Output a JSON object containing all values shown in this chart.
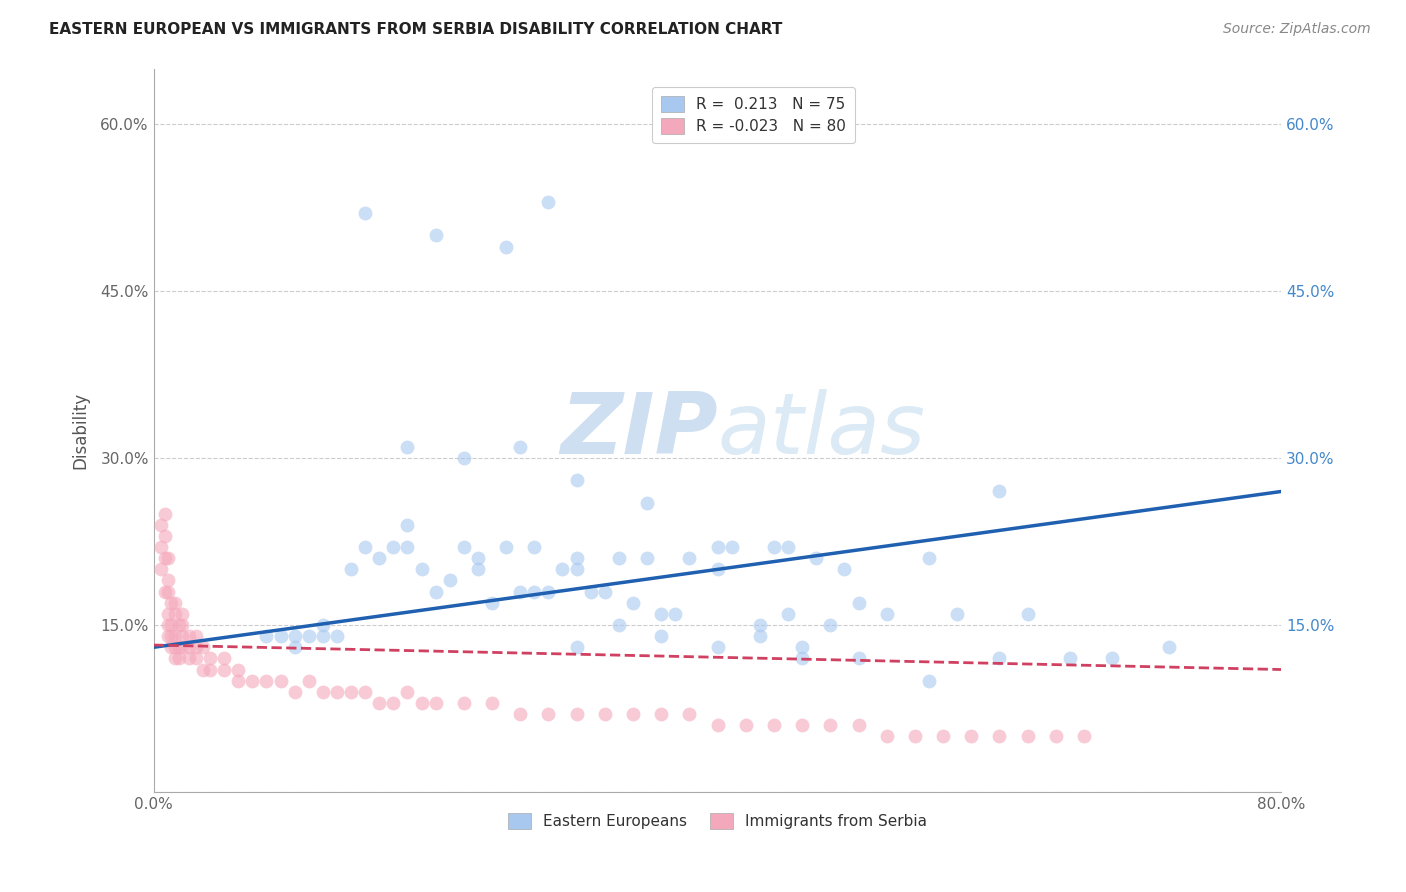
{
  "title": "EASTERN EUROPEAN VS IMMIGRANTS FROM SERBIA DISABILITY CORRELATION CHART",
  "source": "Source: ZipAtlas.com",
  "ylabel": "Disability",
  "watermark_zip": "ZIP",
  "watermark_atlas": "atlas",
  "xmin": 0.0,
  "xmax": 0.8,
  "ymin": 0.0,
  "ymax": 0.65,
  "yticks": [
    0.0,
    0.15,
    0.3,
    0.45,
    0.6
  ],
  "ytick_labels_left": [
    "",
    "15.0%",
    "30.0%",
    "45.0%",
    "60.0%"
  ],
  "ytick_labels_right": [
    "",
    "15.0%",
    "30.0%",
    "45.0%",
    "60.0%"
  ],
  "xtick_labels": [
    "0.0%",
    "",
    "",
    "",
    "80.0%"
  ],
  "legend_r1": "R =  0.213",
  "legend_n1": "N = 75",
  "legend_r2": "R = -0.023",
  "legend_n2": "N = 80",
  "color_blue": "#A8C8F0",
  "color_pink": "#F4A8BB",
  "line_blue": "#2060B0",
  "line_pink": "#D04060",
  "blue_scatter_x": [
    0.1,
    0.12,
    0.14,
    0.15,
    0.16,
    0.17,
    0.18,
    0.18,
    0.19,
    0.2,
    0.21,
    0.22,
    0.23,
    0.23,
    0.24,
    0.25,
    0.26,
    0.27,
    0.27,
    0.28,
    0.29,
    0.3,
    0.3,
    0.31,
    0.32,
    0.33,
    0.34,
    0.35,
    0.36,
    0.37,
    0.38,
    0.4,
    0.41,
    0.43,
    0.44,
    0.45,
    0.46,
    0.47,
    0.48,
    0.49,
    0.5,
    0.52,
    0.55,
    0.57,
    0.6,
    0.62,
    0.65,
    0.68,
    0.72,
    0.15,
    0.2,
    0.25,
    0.28,
    0.3,
    0.33,
    0.36,
    0.4,
    0.43,
    0.46,
    0.5,
    0.55,
    0.6,
    0.18,
    0.22,
    0.26,
    0.3,
    0.35,
    0.4,
    0.45,
    0.08,
    0.09,
    0.1,
    0.11,
    0.12,
    0.13
  ],
  "blue_scatter_y": [
    0.14,
    0.14,
    0.2,
    0.22,
    0.21,
    0.22,
    0.24,
    0.22,
    0.2,
    0.18,
    0.19,
    0.22,
    0.2,
    0.21,
    0.17,
    0.22,
    0.18,
    0.18,
    0.22,
    0.18,
    0.2,
    0.2,
    0.21,
    0.18,
    0.18,
    0.21,
    0.17,
    0.21,
    0.16,
    0.16,
    0.21,
    0.2,
    0.22,
    0.15,
    0.22,
    0.16,
    0.13,
    0.21,
    0.15,
    0.2,
    0.17,
    0.16,
    0.21,
    0.16,
    0.27,
    0.16,
    0.12,
    0.12,
    0.13,
    0.52,
    0.5,
    0.49,
    0.53,
    0.13,
    0.15,
    0.14,
    0.13,
    0.14,
    0.12,
    0.12,
    0.1,
    0.12,
    0.31,
    0.3,
    0.31,
    0.28,
    0.26,
    0.22,
    0.22,
    0.14,
    0.14,
    0.13,
    0.14,
    0.15,
    0.14
  ],
  "pink_scatter_x": [
    0.005,
    0.005,
    0.005,
    0.008,
    0.008,
    0.008,
    0.008,
    0.01,
    0.01,
    0.01,
    0.01,
    0.01,
    0.01,
    0.012,
    0.012,
    0.012,
    0.012,
    0.015,
    0.015,
    0.015,
    0.015,
    0.015,
    0.018,
    0.018,
    0.018,
    0.02,
    0.02,
    0.02,
    0.02,
    0.025,
    0.025,
    0.025,
    0.03,
    0.03,
    0.03,
    0.035,
    0.035,
    0.04,
    0.04,
    0.05,
    0.05,
    0.06,
    0.06,
    0.07,
    0.08,
    0.09,
    0.1,
    0.11,
    0.12,
    0.13,
    0.14,
    0.15,
    0.16,
    0.17,
    0.18,
    0.19,
    0.2,
    0.22,
    0.24,
    0.26,
    0.28,
    0.3,
    0.32,
    0.34,
    0.36,
    0.38,
    0.4,
    0.42,
    0.44,
    0.46,
    0.48,
    0.5,
    0.52,
    0.54,
    0.56,
    0.58,
    0.6,
    0.62,
    0.64,
    0.66
  ],
  "pink_scatter_y": [
    0.2,
    0.22,
    0.24,
    0.18,
    0.21,
    0.23,
    0.25,
    0.14,
    0.15,
    0.16,
    0.18,
    0.19,
    0.21,
    0.13,
    0.14,
    0.15,
    0.17,
    0.12,
    0.13,
    0.14,
    0.16,
    0.17,
    0.12,
    0.13,
    0.15,
    0.13,
    0.14,
    0.15,
    0.16,
    0.12,
    0.13,
    0.14,
    0.12,
    0.13,
    0.14,
    0.11,
    0.13,
    0.11,
    0.12,
    0.11,
    0.12,
    0.1,
    0.11,
    0.1,
    0.1,
    0.1,
    0.09,
    0.1,
    0.09,
    0.09,
    0.09,
    0.09,
    0.08,
    0.08,
    0.09,
    0.08,
    0.08,
    0.08,
    0.08,
    0.07,
    0.07,
    0.07,
    0.07,
    0.07,
    0.07,
    0.07,
    0.06,
    0.06,
    0.06,
    0.06,
    0.06,
    0.06,
    0.05,
    0.05,
    0.05,
    0.05,
    0.05,
    0.05,
    0.05,
    0.05
  ],
  "blue_line_x": [
    0.0,
    0.8
  ],
  "blue_line_y": [
    0.13,
    0.27
  ],
  "pink_line_x": [
    0.0,
    0.8
  ],
  "pink_line_y": [
    0.132,
    0.11
  ]
}
